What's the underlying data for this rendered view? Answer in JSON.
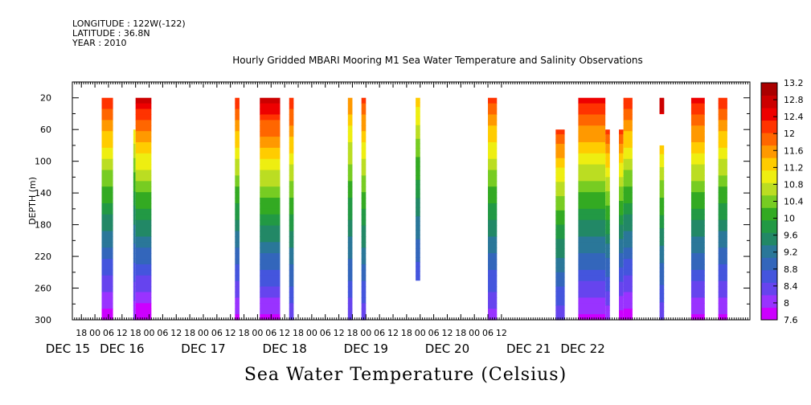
{
  "header": {
    "longitude": "LONGITUDE : 122W(-122)",
    "latitude": "LATITUDE : 36.8N",
    "year": "YEAR : 2010",
    "title": "Hourly Gridded MBARI Mooring M1 Sea Water Temperature and Salinity Observations"
  },
  "caption": "Sea Water Temperature (Celsius)",
  "chart_data": {
    "type": "heatmap",
    "title": "Hourly Gridded MBARI Mooring M1 Sea Water Temperature and Salinity Observations",
    "xlabel": "",
    "ylabel": "DEPTH (m)",
    "colorbar_label": "Sea Water Temperature (Celsius)",
    "y_inverted": true,
    "ylim": [
      300,
      0
    ],
    "y_ticks": [
      20,
      60,
      100,
      140,
      180,
      220,
      260,
      300
    ],
    "x_range_hours": [
      -10,
      290
    ],
    "x_hour_labels": [
      "18",
      "00",
      "06",
      "12",
      "18",
      "00",
      "06",
      "12",
      "18",
      "00",
      "06",
      "12",
      "18",
      "00",
      "06",
      "12",
      "18",
      "00",
      "06",
      "12",
      "18",
      "00",
      "06",
      "12",
      "18",
      "00",
      "06",
      "12",
      "18",
      "00",
      "06",
      "12"
    ],
    "x_day_labels": [
      "DEC 15",
      "DEC 16",
      "DEC 17",
      "DEC 18",
      "DEC 19",
      "DEC 20",
      "DEC 21",
      "DEC 22"
    ],
    "colorbar_ticks": [
      "13.2",
      "12.8",
      "12.4",
      "12",
      "11.6",
      "11.2",
      "10.8",
      "10.4",
      "10",
      "9.6",
      "9.2",
      "8.8",
      "8.4",
      "8",
      "7.6"
    ],
    "colorbar_range": [
      7.6,
      13.2
    ],
    "colors": [
      "#cc00ff",
      "#9933ff",
      "#6644ee",
      "#4455dd",
      "#3366bb",
      "#2a7799",
      "#228866",
      "#229944",
      "#33aa22",
      "#77cc22",
      "#bbdd22",
      "#eeee11",
      "#ffcc00",
      "#ff9900",
      "#ff6600",
      "#ff3300",
      "#ee0000",
      "#cc0000",
      "#aa0000"
    ],
    "segments": [
      {
        "start": 3,
        "end": 8,
        "top": 20,
        "bottom": 300,
        "surface": 12.4,
        "bottom_temp": 7.7
      },
      {
        "start": 17,
        "end": 18,
        "top": 60,
        "bottom": 300,
        "surface": 11.2,
        "bottom_temp": 7.9
      },
      {
        "start": 18,
        "end": 25,
        "top": 20,
        "bottom": 300,
        "surface": 12.8,
        "bottom_temp": 7.6
      },
      {
        "start": 62,
        "end": 64,
        "top": 20,
        "bottom": 300,
        "surface": 12.4,
        "bottom_temp": 7.8
      },
      {
        "start": 73,
        "end": 82,
        "top": 20,
        "bottom": 300,
        "surface": 12.8,
        "bottom_temp": 7.8
      },
      {
        "start": 86,
        "end": 88,
        "top": 20,
        "bottom": 300,
        "surface": 12.4,
        "bottom_temp": 8.2
      },
      {
        "start": 112,
        "end": 114,
        "top": 20,
        "bottom": 300,
        "surface": 11.8,
        "bottom_temp": 8.2
      },
      {
        "start": 118,
        "end": 120,
        "top": 20,
        "bottom": 300,
        "surface": 12.2,
        "bottom_temp": 8.2
      },
      {
        "start": 142,
        "end": 144,
        "top": 20,
        "bottom": 250,
        "surface": 11.4,
        "bottom_temp": 8.5
      },
      {
        "start": 174,
        "end": 178,
        "top": 20,
        "bottom": 300,
        "surface": 12.2,
        "bottom_temp": 8.0
      },
      {
        "start": 204,
        "end": 208,
        "top": 60,
        "bottom": 300,
        "surface": 12.2,
        "bottom_temp": 8.2
      },
      {
        "start": 214,
        "end": 226,
        "top": 20,
        "bottom": 300,
        "surface": 12.6,
        "bottom_temp": 7.8
      },
      {
        "start": 226,
        "end": 228,
        "top": 60,
        "bottom": 300,
        "surface": 12.2,
        "bottom_temp": 7.9
      },
      {
        "start": 232,
        "end": 234,
        "top": 60,
        "bottom": 300,
        "surface": 12.2,
        "bottom_temp": 7.7
      },
      {
        "start": 234,
        "end": 238,
        "top": 20,
        "bottom": 300,
        "surface": 12.4,
        "bottom_temp": 7.7
      },
      {
        "start": 250,
        "end": 252,
        "top": 20,
        "bottom": 40,
        "surface": 12.8,
        "bottom_temp": 12.6
      },
      {
        "start": 250,
        "end": 252,
        "top": 80,
        "bottom": 300,
        "surface": 11.4,
        "bottom_temp": 8.2
      },
      {
        "start": 264,
        "end": 270,
        "top": 20,
        "bottom": 300,
        "surface": 12.6,
        "bottom_temp": 7.8
      },
      {
        "start": 276,
        "end": 280,
        "top": 20,
        "bottom": 300,
        "surface": 12.4,
        "bottom_temp": 7.8
      }
    ]
  }
}
